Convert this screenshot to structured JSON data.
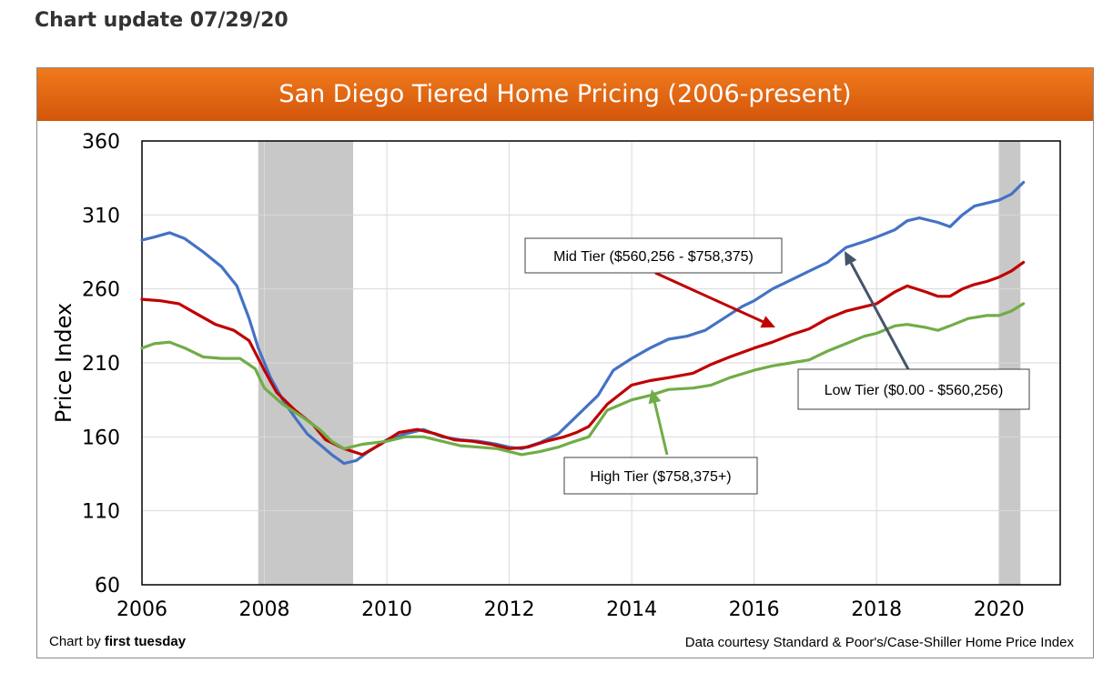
{
  "page": {
    "update_title": "Chart update 07/29/20",
    "credit_prefix": "Chart by ",
    "credit_name": "first tuesday",
    "source": "Data courtesy Standard & Poor's/Case-Shiller Home Price Index"
  },
  "chart_data": {
    "type": "line",
    "title": "San Diego Tiered Home Pricing (2006-present)",
    "xlabel": "",
    "ylabel": "Price Index",
    "xlim": [
      2006,
      2021
    ],
    "ylim": [
      60,
      360
    ],
    "x_ticks": [
      2006,
      2008,
      2010,
      2012,
      2014,
      2016,
      2018,
      2020
    ],
    "y_ticks": [
      60,
      110,
      160,
      210,
      260,
      310,
      360
    ],
    "grid": true,
    "recession_bands": [
      [
        2007.9,
        2009.45
      ],
      [
        2020.0,
        2020.35
      ]
    ],
    "colors": {
      "low": "#4472c4",
      "mid": "#c00000",
      "high": "#70ad47",
      "band": "#c8c8c8",
      "banner": "#e46c14"
    },
    "series": [
      {
        "key": "low",
        "x": [
          2006.0,
          2006.2,
          2006.45,
          2006.7,
          2007.0,
          2007.3,
          2007.55,
          2007.75,
          2007.9,
          2008.1,
          2008.3,
          2008.5,
          2008.7,
          2008.9,
          2009.1,
          2009.3,
          2009.5,
          2009.7,
          2010.0,
          2010.3,
          2010.6,
          2010.9,
          2011.2,
          2011.5,
          2011.8,
          2012.0,
          2012.2,
          2012.5,
          2012.8,
          2013.0,
          2013.2,
          2013.45,
          2013.7,
          2014.0,
          2014.3,
          2014.6,
          2014.9,
          2015.2,
          2015.5,
          2015.8,
          2016.0,
          2016.3,
          2016.6,
          2016.9,
          2017.2,
          2017.5,
          2017.8,
          2018.0,
          2018.3,
          2018.5,
          2018.7,
          2019.0,
          2019.2,
          2019.4,
          2019.6,
          2019.8,
          2020.0,
          2020.2,
          2020.4
        ],
        "values": [
          293,
          295,
          298,
          294,
          285,
          275,
          262,
          240,
          220,
          200,
          185,
          173,
          162,
          155,
          148,
          142,
          144,
          150,
          158,
          162,
          165,
          160,
          158,
          157,
          155,
          153,
          152,
          156,
          162,
          170,
          178,
          188,
          205,
          213,
          220,
          226,
          228,
          232,
          240,
          248,
          252,
          260,
          266,
          272,
          278,
          288,
          292,
          295,
          300,
          306,
          308,
          305,
          302,
          310,
          316,
          318,
          320,
          324,
          332
        ]
      },
      {
        "key": "mid",
        "x": [
          2006.0,
          2006.3,
          2006.6,
          2006.9,
          2007.2,
          2007.5,
          2007.75,
          2008.0,
          2008.2,
          2008.5,
          2008.8,
          2009.0,
          2009.3,
          2009.6,
          2009.9,
          2010.2,
          2010.5,
          2010.8,
          2011.1,
          2011.4,
          2011.7,
          2012.0,
          2012.3,
          2012.6,
          2012.9,
          2013.1,
          2013.3,
          2013.6,
          2014.0,
          2014.3,
          2014.6,
          2015.0,
          2015.3,
          2015.6,
          2016.0,
          2016.3,
          2016.6,
          2016.9,
          2017.2,
          2017.5,
          2017.8,
          2018.0,
          2018.3,
          2018.5,
          2018.8,
          2019.0,
          2019.2,
          2019.4,
          2019.6,
          2019.8,
          2020.0,
          2020.2,
          2020.4
        ],
        "values": [
          253,
          252,
          250,
          243,
          236,
          232,
          225,
          205,
          190,
          178,
          168,
          158,
          152,
          148,
          155,
          163,
          165,
          162,
          158,
          157,
          155,
          152,
          153,
          157,
          160,
          163,
          167,
          182,
          195,
          198,
          200,
          203,
          209,
          214,
          220,
          224,
          229,
          233,
          240,
          245,
          248,
          250,
          258,
          262,
          258,
          255,
          255,
          260,
          263,
          265,
          268,
          272,
          278
        ]
      },
      {
        "key": "high",
        "x": [
          2006.0,
          2006.2,
          2006.45,
          2006.7,
          2007.0,
          2007.3,
          2007.6,
          2007.85,
          2008.0,
          2008.3,
          2008.6,
          2008.9,
          2009.1,
          2009.3,
          2009.6,
          2010.0,
          2010.3,
          2010.6,
          2010.9,
          2011.2,
          2011.5,
          2011.8,
          2012.0,
          2012.2,
          2012.5,
          2012.8,
          2013.0,
          2013.3,
          2013.6,
          2014.0,
          2014.3,
          2014.6,
          2015.0,
          2015.3,
          2015.6,
          2016.0,
          2016.3,
          2016.6,
          2016.9,
          2017.2,
          2017.5,
          2017.8,
          2018.0,
          2018.3,
          2018.5,
          2018.8,
          2019.0,
          2019.2,
          2019.5,
          2019.8,
          2020.0,
          2020.2,
          2020.4
        ],
        "values": [
          220,
          223,
          224,
          220,
          214,
          213,
          213,
          206,
          193,
          182,
          174,
          165,
          157,
          152,
          155,
          157,
          160,
          160,
          157,
          154,
          153,
          152,
          150,
          148,
          150,
          153,
          156,
          160,
          178,
          185,
          188,
          192,
          193,
          195,
          200,
          205,
          208,
          210,
          212,
          218,
          223,
          228,
          230,
          235,
          236,
          234,
          232,
          235,
          240,
          242,
          242,
          245,
          250
        ]
      }
    ],
    "annotations": [
      {
        "key": "mid",
        "text": "Mid Tier ($560,256 - $758,375)",
        "box_at": [
          2006.4,
          2008.6
        ],
        "arrow_from": [
          2010.0,
          2016.0
        ],
        "arrow_to": [
          2016.2,
          2014.9
        ]
      },
      {
        "key": "low",
        "text": "Low Tier ($0.00 - $560,256)",
        "box_at": [
          2017.1,
          2019.9
        ],
        "arrow_from": [
          2017.0,
          2018.6
        ],
        "arrow_to": [
          2017.4,
          2018.6
        ]
      },
      {
        "key": "high",
        "text": "High Tier ($758,375+)",
        "box_at": [
          2013.6,
          2016.2
        ],
        "arrow_from": [
          2013.9,
          2014.6
        ],
        "arrow_to": [
          2014.4,
          2014.3
        ]
      }
    ]
  }
}
